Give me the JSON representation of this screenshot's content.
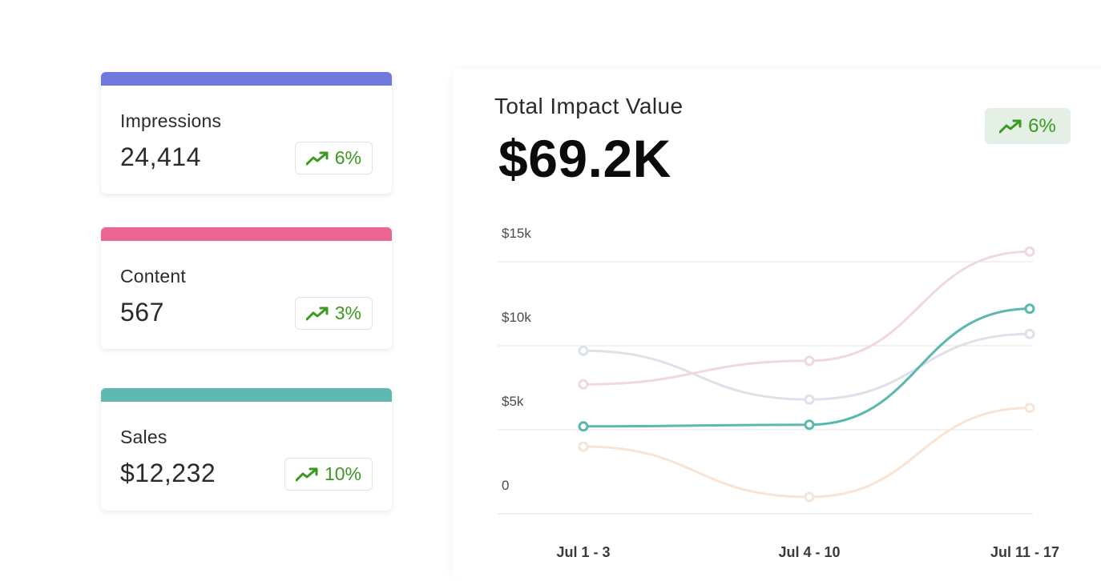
{
  "cards": [
    {
      "label": "Impressions",
      "value": "24,414",
      "change": "6%",
      "color": "#7079de",
      "icon": "trending-up-icon"
    },
    {
      "label": "Content",
      "value": "567",
      "change": "3%",
      "color": "#ea6591",
      "icon": "trending-up-icon"
    },
    {
      "label": "Sales",
      "value": "$12,232",
      "change": "10%",
      "color": "#5fb8b1",
      "icon": "trending-up-icon"
    }
  ],
  "panel": {
    "title": "Total Impact Value",
    "value": "$69.2K",
    "change": "6%",
    "change_color": "#3a9a1f",
    "change_bg": "#e4efe5"
  },
  "chart_data": {
    "type": "line",
    "categories": [
      "Jul 1 - 3",
      "Jul 4 - 10",
      "Jul 11 - 17"
    ],
    "y_ticks": [
      "$15k",
      "$10k",
      "$5k",
      "0"
    ],
    "y_tick_values": [
      15000,
      10000,
      5000,
      0
    ],
    "ylim": [
      0,
      15000
    ],
    "grid": true,
    "series": [
      {
        "values": [
          9700,
          6800,
          10700
        ],
        "color": "#dde1ea"
      },
      {
        "values": [
          7700,
          9100,
          15600
        ],
        "color": "#efd9df"
      },
      {
        "values": [
          4000,
          1000,
          6300
        ],
        "color": "#f9e4d4"
      },
      {
        "values": [
          5200,
          5300,
          12200
        ],
        "color": "#5ab8ae",
        "highlight": true
      }
    ]
  }
}
